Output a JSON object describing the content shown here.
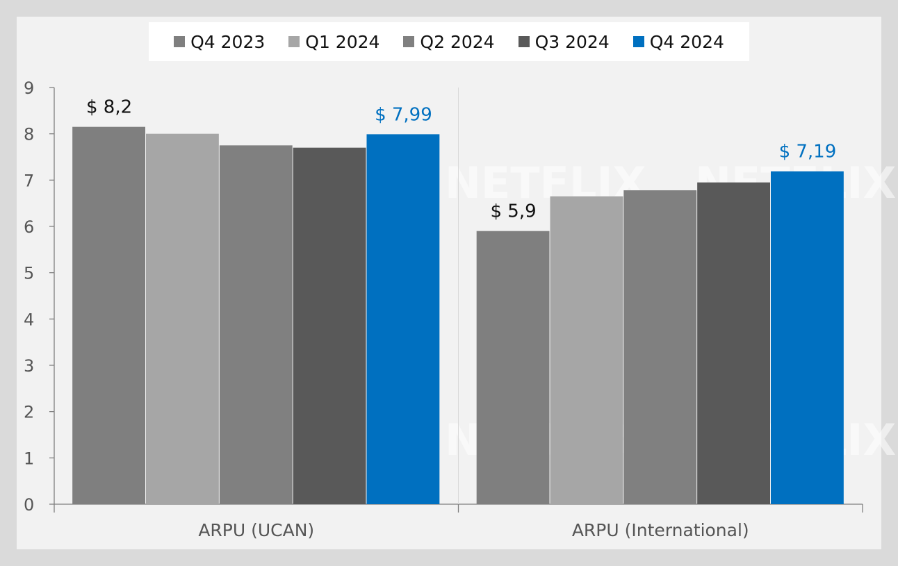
{
  "chart_data": {
    "type": "bar",
    "categories": [
      "ARPU (UCAN)",
      "ARPU (International)"
    ],
    "series": [
      {
        "name": "Q4 2023",
        "color": "#7f7f7f",
        "values": [
          8.15,
          5.9
        ]
      },
      {
        "name": "Q1 2024",
        "color": "#a6a6a6",
        "values": [
          8.0,
          6.65
        ]
      },
      {
        "name": "Q2 2024",
        "color": "#808080",
        "values": [
          7.75,
          6.78
        ]
      },
      {
        "name": "Q3 2024",
        "color": "#595959",
        "values": [
          7.7,
          6.95
        ]
      },
      {
        "name": "Q4 2024",
        "color": "#0070c0",
        "values": [
          7.99,
          7.19
        ]
      }
    ],
    "data_labels": [
      {
        "series": 0,
        "category": 0,
        "text": "$ 8,2",
        "color": "#111111"
      },
      {
        "series": 4,
        "category": 0,
        "text": "$ 7,99",
        "color": "#0070c0"
      },
      {
        "series": 0,
        "category": 1,
        "text": "$ 5,9",
        "color": "#111111"
      },
      {
        "series": 4,
        "category": 1,
        "text": "$ 7,19",
        "color": "#0070c0"
      }
    ],
    "yticks": [
      "0",
      "1",
      "2",
      "3",
      "4",
      "5",
      "6",
      "7",
      "8",
      "9"
    ],
    "ylim": [
      0,
      9
    ],
    "legend_position": "top",
    "grid": false
  },
  "watermark": {
    "text": "NETFLIX"
  }
}
